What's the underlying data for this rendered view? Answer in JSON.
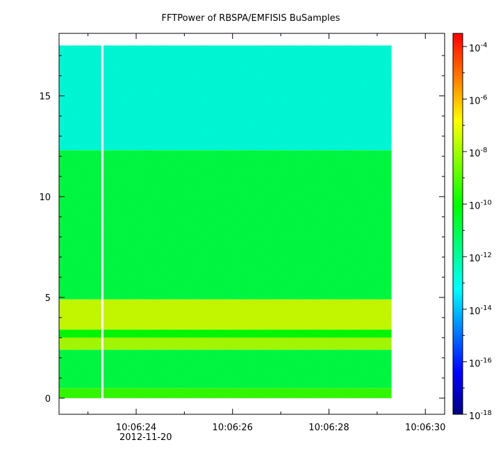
{
  "chart_data": {
    "type": "heatmap",
    "title": "FFTPower of RBSPA/EMFISIS  BuSamples",
    "xlabel": "",
    "ylabel": "",
    "x_date_label": "2012-11-20",
    "xlim_seconds": [
      22.4,
      30.4
    ],
    "x_ticks": [
      {
        "value": 24,
        "label": "10:06:24"
      },
      {
        "value": 26,
        "label": "10:06:26"
      },
      {
        "value": 28,
        "label": "10:06:28"
      },
      {
        "value": 30,
        "label": "10:06:30"
      }
    ],
    "x_minor_ticks": [
      23,
      25,
      27,
      29
    ],
    "ylim": [
      -0.8,
      18.1
    ],
    "y_ticks": [
      {
        "value": 0,
        "label": "0"
      },
      {
        "value": 5,
        "label": "5"
      },
      {
        "value": 10,
        "label": "10"
      },
      {
        "value": 15,
        "label": "15"
      }
    ],
    "y_minor_ticks": [
      1,
      2,
      3,
      4,
      6,
      7,
      8,
      9,
      11,
      12,
      13,
      14,
      16,
      17
    ],
    "data_time_range": [
      22.4,
      29.3
    ],
    "data_freq_range": [
      0,
      17.5
    ],
    "gap_time": 23.3,
    "bands": [
      {
        "freq_range": [
          12.3,
          17.5
        ],
        "log_power": -12.7
      },
      {
        "freq_range": [
          4.9,
          12.3
        ],
        "log_power": -10.8
      },
      {
        "freq_range": [
          3.4,
          4.9
        ],
        "log_power": -7.4
      },
      {
        "freq_range": [
          3.0,
          3.4
        ],
        "log_power": -10.0
      },
      {
        "freq_range": [
          2.4,
          3.0
        ],
        "log_power": -7.8
      },
      {
        "freq_range": [
          0.5,
          2.4
        ],
        "log_power": -10.8
      },
      {
        "freq_range": [
          0.0,
          0.5
        ],
        "log_power": -9.3
      }
    ],
    "colorbar": {
      "scale": "log",
      "range_exp": [
        -18,
        -3.5
      ],
      "tick_exps": [
        -4,
        -6,
        -8,
        -10,
        -12,
        -14,
        -16,
        -18
      ],
      "colormap": [
        "#00007f",
        "#0000ff",
        "#007fff",
        "#00ffff",
        "#00ff7f",
        "#00ff00",
        "#7fff00",
        "#ffff00",
        "#ff7f00",
        "#ff0000"
      ]
    }
  }
}
